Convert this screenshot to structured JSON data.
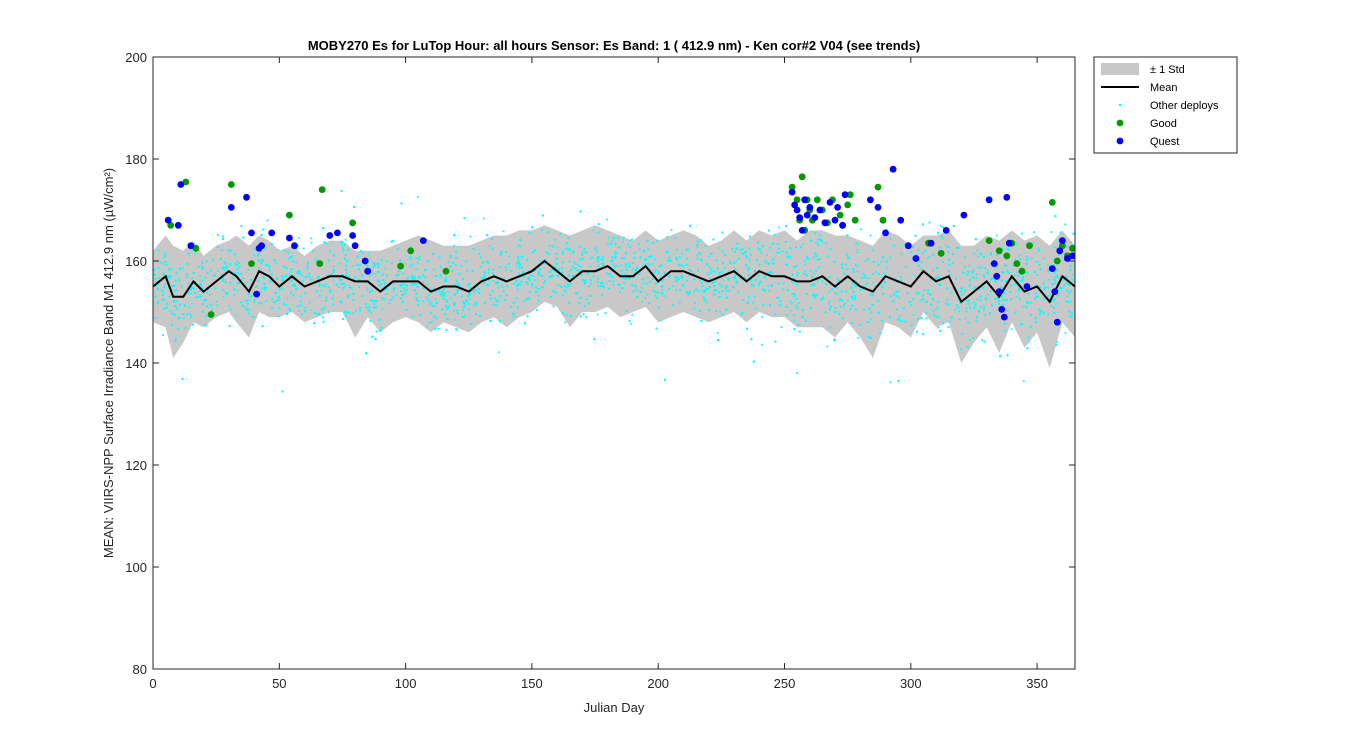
{
  "chart_data": {
    "type": "scatter",
    "title": "MOBY270   Es for LuTop  Hour: all hours  Sensor: Es Band: 1 ( 412.9 nm)  - Ken cor#2 V04 (see trends)",
    "xlabel": "Julian Day",
    "ylabel": "MEAN: VIIRS-NPP Surface Irradiance Band M1 412.9 nm (µW/cm²)",
    "xlim": [
      0,
      365
    ],
    "ylim": [
      80,
      200
    ],
    "xticks": [
      0,
      50,
      100,
      150,
      200,
      250,
      300,
      350
    ],
    "yticks": [
      80,
      100,
      120,
      140,
      160,
      180,
      200
    ],
    "grid": false,
    "legend_position": "outside-top-right",
    "legend": [
      "± 1 Std",
      "Mean",
      "Other deploys",
      "Good",
      "Quest"
    ],
    "colors": {
      "std_band": "#c8c8c8",
      "mean": "#000000",
      "other": "#00ffff",
      "good": "#009900",
      "quest": "#0000ff"
    },
    "mean_line": {
      "x": [
        0,
        5,
        8,
        12,
        16,
        20,
        25,
        30,
        33,
        38,
        42,
        46,
        50,
        55,
        60,
        65,
        70,
        75,
        80,
        85,
        90,
        95,
        100,
        105,
        110,
        115,
        120,
        125,
        130,
        135,
        140,
        145,
        150,
        155,
        160,
        165,
        170,
        175,
        180,
        185,
        190,
        195,
        200,
        205,
        210,
        215,
        220,
        225,
        230,
        235,
        240,
        245,
        250,
        255,
        260,
        265,
        270,
        275,
        280,
        285,
        290,
        295,
        300,
        305,
        310,
        315,
        320,
        325,
        330,
        335,
        340,
        345,
        350,
        355,
        360,
        365
      ],
      "y": [
        155,
        157,
        153,
        153,
        156,
        154,
        156,
        158,
        157,
        154,
        158,
        157,
        155,
        157,
        155,
        156,
        157,
        157,
        156,
        156,
        154,
        156,
        156,
        156,
        154,
        155,
        155,
        154,
        156,
        157,
        156,
        157,
        158,
        160,
        158,
        156,
        158,
        158,
        159,
        157,
        157,
        159,
        156,
        158,
        158,
        157,
        156,
        157,
        158,
        156,
        158,
        157,
        157,
        156,
        156,
        157,
        155,
        157,
        155,
        154,
        157,
        156,
        155,
        158,
        156,
        157,
        152,
        154,
        156,
        153,
        157,
        154,
        155,
        152,
        157,
        155
      ]
    },
    "std_band": {
      "x": [
        0,
        5,
        8,
        12,
        16,
        20,
        25,
        30,
        33,
        38,
        42,
        46,
        50,
        55,
        60,
        65,
        70,
        75,
        80,
        85,
        90,
        95,
        100,
        105,
        110,
        115,
        120,
        125,
        130,
        135,
        140,
        145,
        150,
        155,
        160,
        165,
        170,
        175,
        180,
        185,
        190,
        195,
        200,
        205,
        210,
        215,
        220,
        225,
        230,
        235,
        240,
        245,
        250,
        255,
        260,
        265,
        270,
        275,
        280,
        285,
        290,
        295,
        300,
        305,
        310,
        315,
        320,
        325,
        330,
        335,
        340,
        345,
        350,
        355,
        360,
        365
      ],
      "upper": [
        162,
        165,
        163,
        162,
        164,
        161,
        163,
        164,
        165,
        163,
        165,
        164,
        162,
        163,
        161,
        163,
        164,
        164,
        162,
        162,
        162,
        163,
        164,
        165,
        164,
        163,
        163,
        163,
        164,
        165,
        165,
        166,
        166,
        167,
        166,
        165,
        166,
        167,
        166,
        165,
        164,
        166,
        164,
        165,
        166,
        165,
        163,
        164,
        166,
        164,
        166,
        165,
        166,
        164,
        166,
        166,
        165,
        165,
        164,
        163,
        166,
        165,
        163,
        165,
        165,
        166,
        163,
        163,
        165,
        164,
        166,
        164,
        165,
        163,
        166,
        163
      ],
      "lower": [
        148,
        147,
        141,
        144,
        148,
        147,
        149,
        150,
        148,
        145,
        150,
        149,
        149,
        150,
        148,
        149,
        150,
        150,
        145,
        149,
        146,
        148,
        149,
        148,
        146,
        148,
        147,
        146,
        148,
        149,
        147,
        149,
        150,
        152,
        151,
        147,
        150,
        150,
        151,
        149,
        150,
        151,
        148,
        149,
        150,
        149,
        148,
        149,
        150,
        148,
        150,
        149,
        149,
        147,
        147,
        147,
        145,
        148,
        145,
        141,
        148,
        147,
        145,
        150,
        147,
        148,
        140,
        144,
        147,
        142,
        148,
        143,
        146,
        139,
        148,
        145
      ]
    },
    "series": [
      {
        "name": "Good",
        "x": [
          7,
          13,
          17,
          23,
          31,
          39,
          54,
          66,
          67,
          79,
          98,
          102,
          116,
          253,
          255,
          256,
          257,
          258,
          259,
          260,
          261,
          263,
          265,
          267,
          269,
          272,
          273,
          275,
          276,
          278,
          287,
          289,
          307,
          312,
          331,
          335,
          338,
          340,
          342,
          344,
          347,
          356,
          358,
          360,
          362,
          364
        ],
        "y": [
          167,
          175.5,
          162.5,
          149.5,
          175,
          159.5,
          169,
          159.5,
          174,
          167.5,
          159,
          162,
          158,
          174.5,
          172,
          168,
          176.5,
          166,
          172,
          170,
          168,
          172,
          170,
          167.5,
          172,
          169,
          167,
          171,
          173,
          168,
          174.5,
          168,
          163.5,
          161.5,
          164,
          162,
          161,
          163.5,
          159.5,
          158,
          163,
          171.5,
          160,
          163,
          161,
          162.5
        ]
      },
      {
        "name": "Quest",
        "x": [
          6,
          10,
          11,
          15,
          31,
          37,
          39,
          41,
          42,
          43,
          47,
          54,
          56,
          70,
          73,
          79,
          80,
          84,
          85,
          107,
          253,
          254,
          255,
          256,
          257,
          258,
          259,
          260,
          262,
          264,
          266,
          268,
          270,
          271,
          273,
          274,
          284,
          287,
          290,
          293,
          296,
          299,
          302,
          308,
          314,
          321,
          331,
          333,
          334,
          335,
          336,
          337,
          338,
          339,
          346,
          356,
          357,
          358,
          359,
          360,
          362,
          364
        ],
        "y": [
          168,
          167,
          175,
          163,
          170.5,
          172.5,
          165.5,
          153.5,
          162.5,
          163,
          165.5,
          164.5,
          163,
          165,
          165.5,
          165,
          163,
          160,
          158,
          164,
          173.5,
          171,
          170,
          168.5,
          166,
          172,
          169,
          170.5,
          168.5,
          170,
          167.5,
          171.5,
          168,
          170.5,
          167,
          173,
          172,
          170.5,
          165.5,
          178,
          168,
          163,
          160.5,
          163.5,
          166,
          169,
          172,
          159.5,
          157,
          154,
          150.5,
          149,
          172.5,
          163.5,
          155,
          158.5,
          154,
          148,
          162,
          164,
          160.5,
          161
        ]
      },
      {
        "name": "Other deploys",
        "x": [],
        "y": []
      }
    ]
  }
}
